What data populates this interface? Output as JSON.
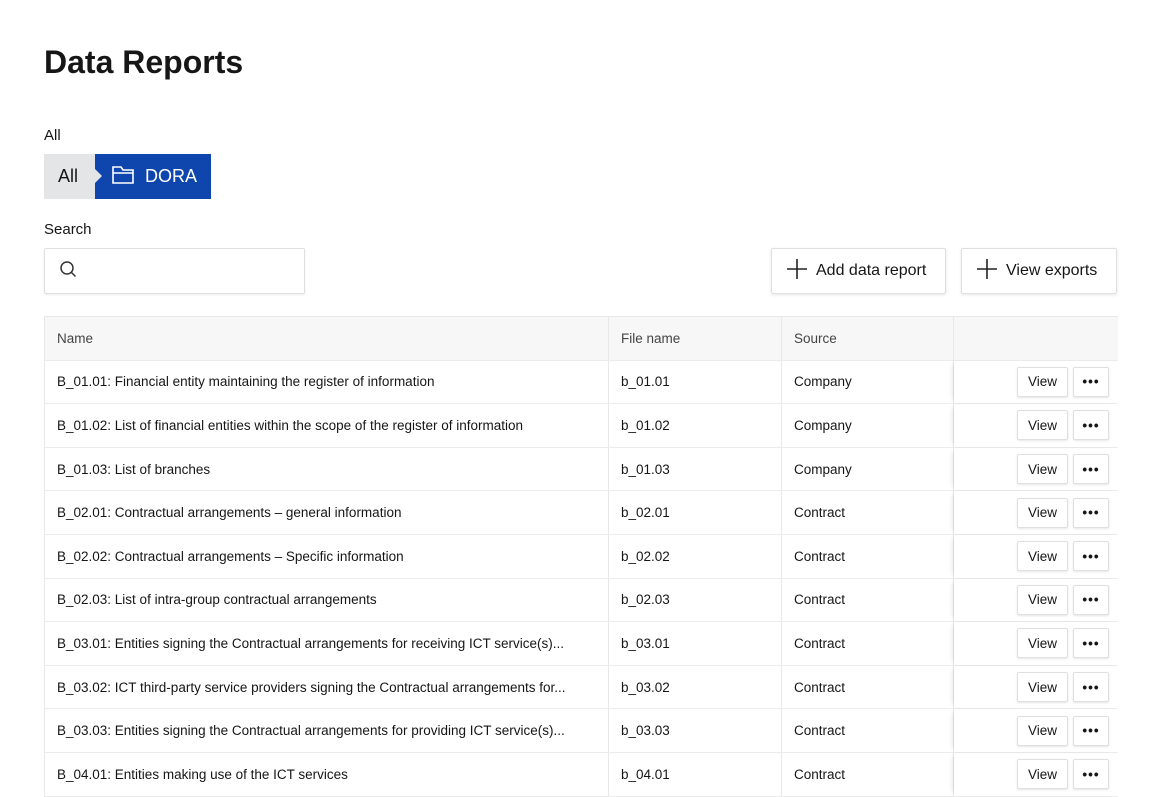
{
  "page": {
    "title": "Data Reports"
  },
  "breadcrumb": {
    "label": "All",
    "items": [
      {
        "label": "All",
        "icon": "none"
      },
      {
        "label": "DORA",
        "icon": "folder-icon",
        "active": true
      }
    ],
    "active_color": "#0f46ad"
  },
  "search": {
    "label": "Search",
    "value": "",
    "placeholder": ""
  },
  "toolbar": {
    "add_label": "Add data report",
    "exports_label": "View exports"
  },
  "table": {
    "columns": [
      "Name",
      "File name",
      "Source",
      ""
    ],
    "rows": [
      {
        "name": "B_01.01: Financial entity maintaining the register of information",
        "file": "b_01.01",
        "source": "Company"
      },
      {
        "name": "B_01.02: List of financial entities within the scope of the register of information",
        "file": "b_01.02",
        "source": "Company"
      },
      {
        "name": "B_01.03: List of branches",
        "file": "b_01.03",
        "source": "Company"
      },
      {
        "name": "B_02.01: Contractual arrangements – general information",
        "file": "b_02.01",
        "source": "Contract"
      },
      {
        "name": "B_02.02: Contractual arrangements – Specific information",
        "file": "b_02.02",
        "source": "Contract"
      },
      {
        "name": "B_02.03: List of intra-group contractual arrangements",
        "file": "b_02.03",
        "source": "Contract"
      },
      {
        "name": "B_03.01: Entities signing the Contractual arrangements for receiving ICT service(s)...",
        "file": "b_03.01",
        "source": "Contract"
      },
      {
        "name": "B_03.02: ICT third-party service providers signing the Contractual arrangements for...",
        "file": "b_03.02",
        "source": "Contract"
      },
      {
        "name": "B_03.03: Entities signing the Contractual arrangements for providing ICT service(s)...",
        "file": "b_03.03",
        "source": "Contract"
      },
      {
        "name": "B_04.01: Entities making use of the ICT services",
        "file": "b_04.01",
        "source": "Contract"
      }
    ],
    "view_label": "View",
    "more_label": "•••"
  }
}
